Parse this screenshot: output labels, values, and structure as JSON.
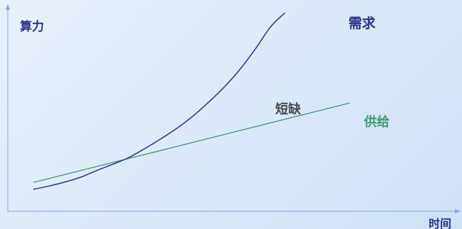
{
  "chart_data": {
    "type": "line",
    "title": "",
    "ylabel": "算力",
    "xlabel": "时间",
    "annotation": "短缺",
    "xlim": [
      0,
      100
    ],
    "ylim": [
      0,
      100
    ],
    "grid": false,
    "series": [
      {
        "name": "需求",
        "color": "#27348b",
        "points": [
          [
            0,
            6
          ],
          [
            5,
            7.8
          ],
          [
            10,
            9.9
          ],
          [
            15,
            12.5
          ],
          [
            20,
            16
          ],
          [
            25,
            19.3
          ],
          [
            30,
            22.8
          ],
          [
            35,
            27.5
          ],
          [
            40,
            32.6
          ],
          [
            45,
            38.1
          ],
          [
            50,
            44.4
          ],
          [
            55,
            51.8
          ],
          [
            60,
            59.9
          ],
          [
            65,
            69.3
          ],
          [
            70,
            80.4
          ],
          [
            75,
            92.6
          ],
          [
            79.5,
            100
          ]
        ]
      },
      {
        "name": "供给",
        "color": "#3a9e6b",
        "points": [
          [
            0,
            9.7
          ],
          [
            100,
            52
          ]
        ]
      }
    ]
  },
  "colors": {
    "background": "#dde9f9",
    "axis": "#7ea7e0",
    "axis_label": "#27348b",
    "annotation": "#4a4a4a",
    "demand": "#27348b",
    "supply": "#3a9e6b"
  }
}
